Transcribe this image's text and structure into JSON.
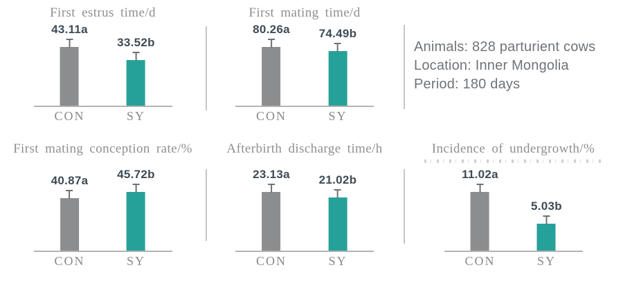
{
  "info_panel": {
    "lines": [
      "Animals: 828 parturient cows",
      "Location: Inner Mongolia",
      "Period: 180 days"
    ]
  },
  "chart_data": [
    {
      "type": "bar",
      "title": "First estrus time/d",
      "categories": [
        "CON",
        "SY"
      ],
      "values": [
        43.11,
        33.52
      ],
      "value_labels": [
        "43.11a",
        "33.52b"
      ],
      "series_colors": [
        "#8B8D8F",
        "#26A199"
      ],
      "error_bars": true,
      "legend": "none",
      "grid": false
    },
    {
      "type": "bar",
      "title": "First mating time/d",
      "categories": [
        "CON",
        "SY"
      ],
      "values": [
        80.26,
        74.49
      ],
      "value_labels": [
        "80.26a",
        "74.49b"
      ],
      "series_colors": [
        "#8B8D8F",
        "#26A199"
      ],
      "error_bars": true,
      "legend": "none",
      "grid": false
    },
    {
      "type": "bar",
      "title": "First mating conception rate/%",
      "categories": [
        "CON",
        "SY"
      ],
      "values": [
        40.87,
        45.72
      ],
      "value_labels": [
        "40.87a",
        "45.72b"
      ],
      "series_colors": [
        "#8B8D8F",
        "#26A199"
      ],
      "error_bars": true,
      "legend": "none",
      "grid": false
    },
    {
      "type": "bar",
      "title": "Afterbirth discharge time/h",
      "categories": [
        "CON",
        "SY"
      ],
      "values": [
        23.13,
        21.02
      ],
      "value_labels": [
        "23.13a",
        "21.02b"
      ],
      "series_colors": [
        "#8B8D8F",
        "#26A199"
      ],
      "error_bars": true,
      "legend": "none",
      "grid": false
    },
    {
      "type": "bar",
      "title": "Incidence of undergrowth/%",
      "categories": [
        "CON",
        "SY"
      ],
      "values": [
        11.02,
        5.03
      ],
      "value_labels": [
        "11.02a",
        "5.03b"
      ],
      "series_colors": [
        "#8B8D8F",
        "#26A199"
      ],
      "error_bars": true,
      "legend": "none",
      "grid": false
    }
  ],
  "colors": {
    "bar_con": "#8B8D8F",
    "bar_sy": "#26A199",
    "axis_line": "#B1B3B5",
    "divider": "#C4C6C8",
    "title_text": "#8D8F91",
    "category_text": "#87898B",
    "value_text": "#3E4B55",
    "info_text": "#6F7377",
    "error_bar": "#6E7072"
  }
}
